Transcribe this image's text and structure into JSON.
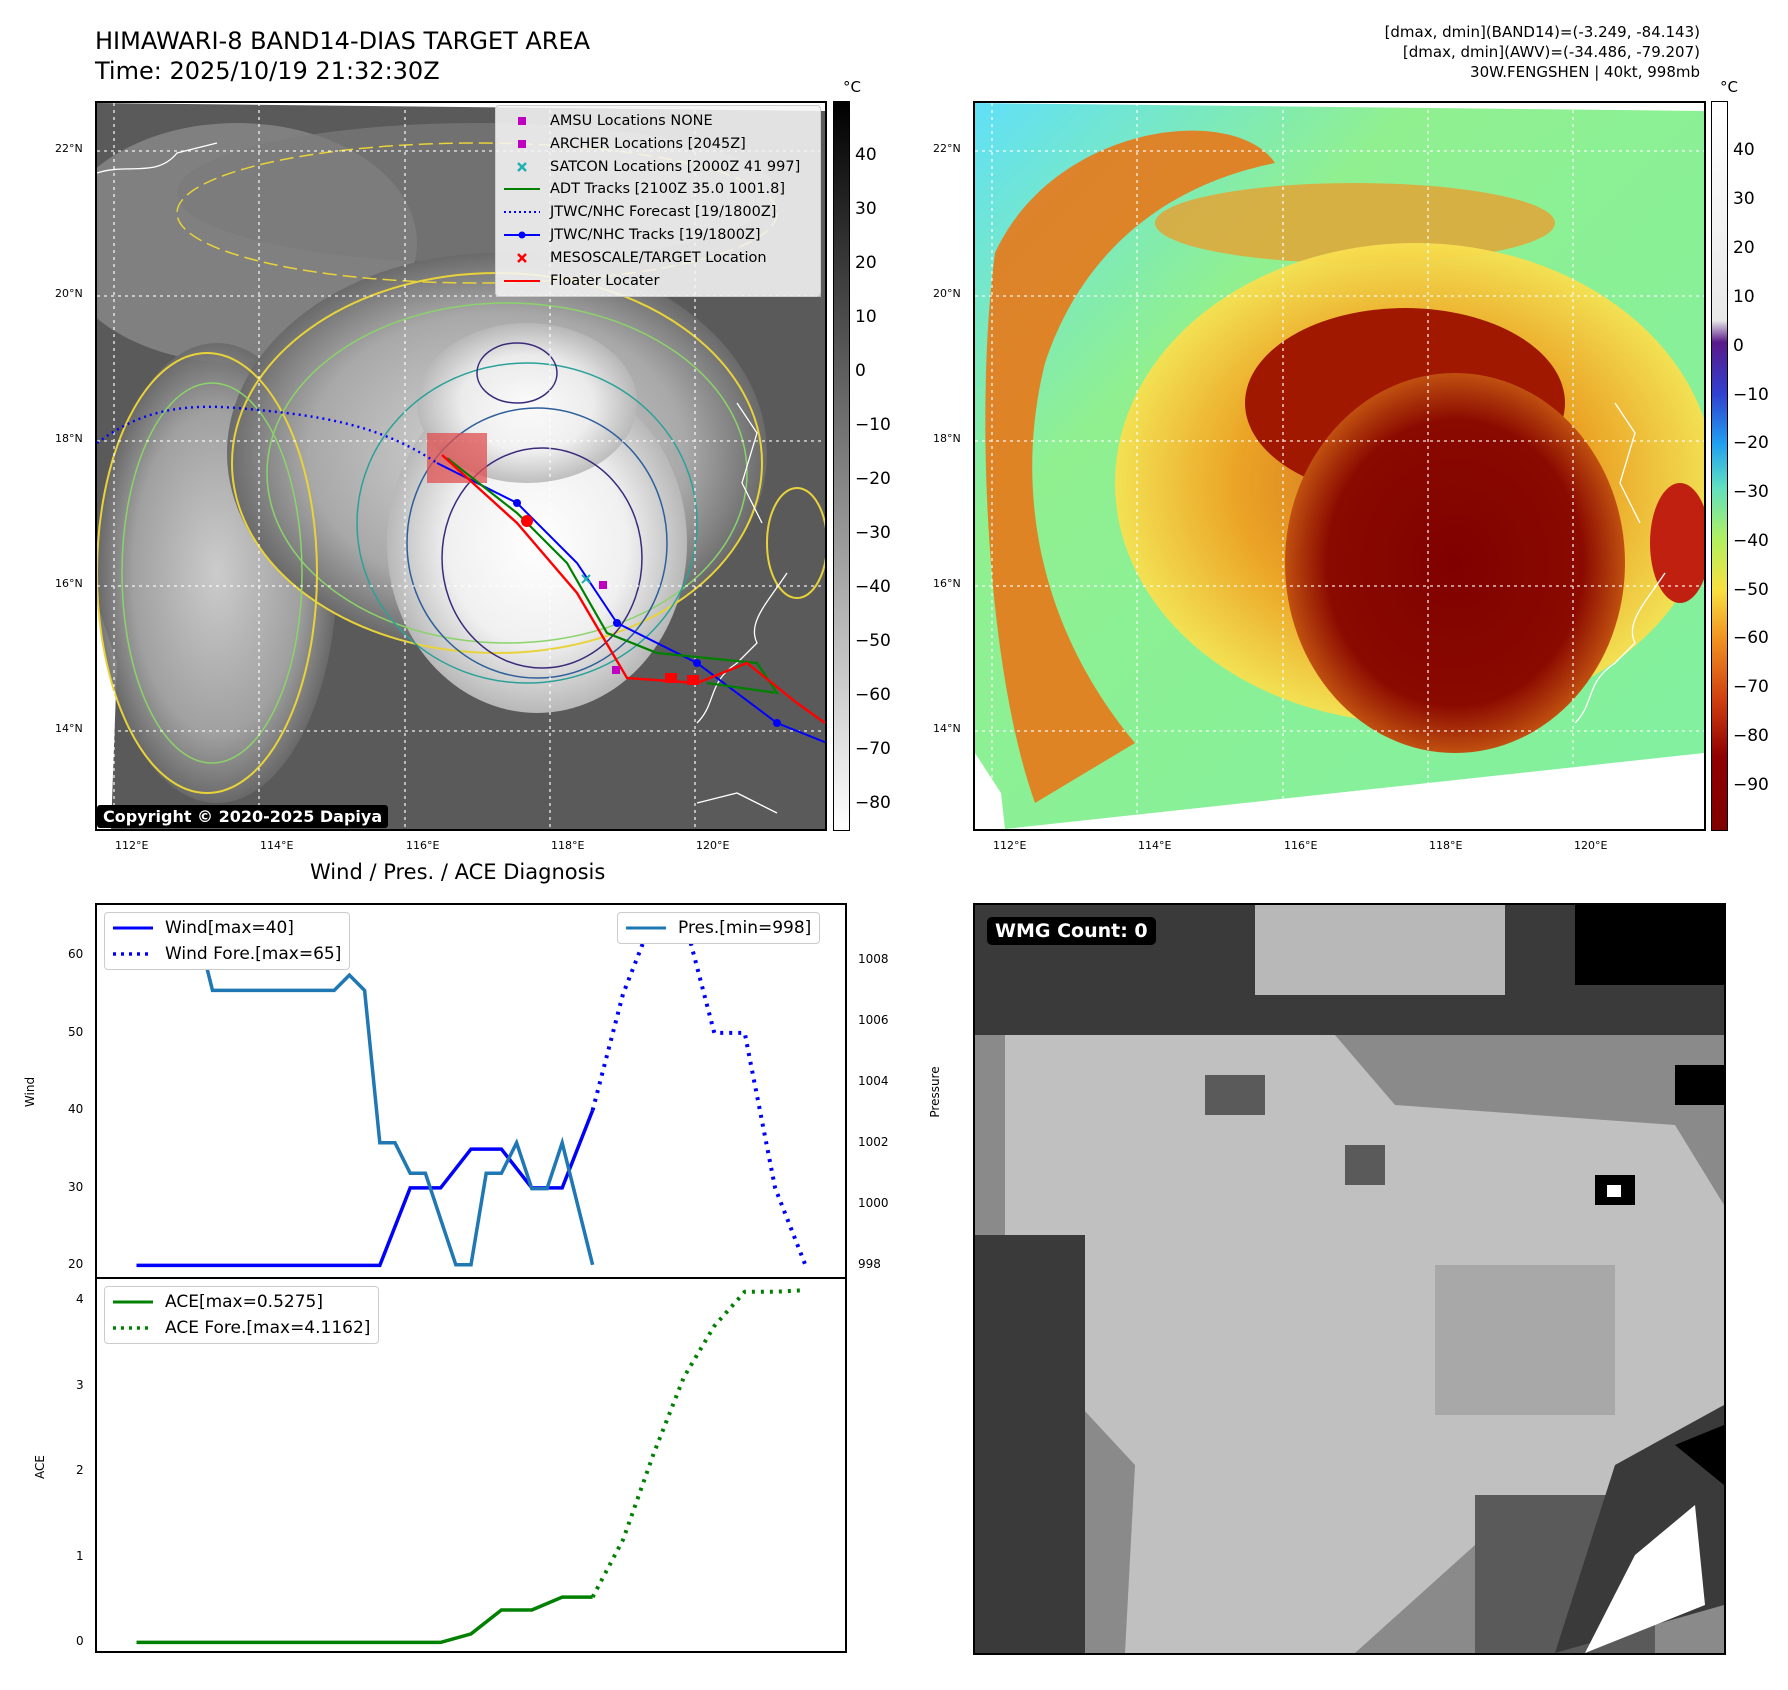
{
  "header": {
    "title_line1": "HIMAWARI-8 BAND14-DIAS TARGET AREA",
    "title_line2": "Time: 2025/10/19 21:32:30Z",
    "meta_line1": "[dmax, dmin](BAND14)=(-3.249, -84.143)",
    "meta_line2": "[dmax, dmin](AWV)=(-34.486, -79.207)",
    "meta_line3": "30W.FENGSHEN | 40kt, 998mb"
  },
  "map": {
    "lat_labels": [
      "22°N",
      "20°N",
      "18°N",
      "16°N",
      "14°N"
    ],
    "lon_labels": [
      "112°E",
      "114°E",
      "116°E",
      "118°E",
      "120°E"
    ],
    "copyright": "Copyright © 2020-2025 Dapiya",
    "legend": [
      {
        "label": "AMSU Locations NONE",
        "marker": "square",
        "color": "#c000c0"
      },
      {
        "label": "ARCHER Locations [2045Z]",
        "marker": "square",
        "color": "#c000c0"
      },
      {
        "label": "SATCON Locations [2000Z 41 997]",
        "marker": "x",
        "color": "#20b0b0"
      },
      {
        "label": "ADT Tracks [2100Z 35.0 1001.8]",
        "marker": "line",
        "color": "#008000"
      },
      {
        "label": "JTWC/NHC Forecast [19/1800Z]",
        "marker": "dotted",
        "color": "#0000ff"
      },
      {
        "label": "JTWC/NHC Tracks [19/1800Z]",
        "marker": "line-dot",
        "color": "#0000ff"
      },
      {
        "label": "MESOSCALE/TARGET Location",
        "marker": "x",
        "color": "#ff0000"
      },
      {
        "label": "Floater Locater",
        "marker": "line",
        "color": "#ff0000"
      }
    ],
    "colorbar_band14": {
      "unit": "°C",
      "ticks": [
        "40",
        "30",
        "20",
        "10",
        "0",
        "−10",
        "−20",
        "−30",
        "−40",
        "−50",
        "−60",
        "−70",
        "−80"
      ]
    },
    "colorbar_awv": {
      "unit": "°C",
      "ticks": [
        "40",
        "30",
        "20",
        "10",
        "0",
        "−10",
        "−20",
        "−30",
        "−40",
        "−50",
        "−60",
        "−70",
        "−80",
        "−90"
      ]
    },
    "colors": {
      "track_red": "#ff0000",
      "track_blue": "#0000ff",
      "track_green": "#008000"
    }
  },
  "diag": {
    "title": "Wind / Pres. / ACE Diagnosis",
    "wind_ylabel": "Wind",
    "pres_ylabel": "Pressure",
    "ace_ylabel": "ACE",
    "legend_wind": "Wind[max=40]",
    "legend_wind_fore": "Wind Fore.[max=65]",
    "legend_pres": "Pres.[min=998]",
    "legend_ace": "ACE[max=0.5275]",
    "legend_ace_fore": "ACE Fore.[max=4.1162]",
    "wmg_label": "WMG Count: 0"
  },
  "chart_data": [
    {
      "type": "line",
      "title": "Wind / Pres. / ACE Diagnosis",
      "ylabel": "Wind",
      "ylim": [
        18.5,
        66.5
      ],
      "yticks": [
        20,
        30,
        40,
        50,
        60
      ],
      "x_range": [
        0,
        22
      ],
      "series": [
        {
          "name": "Wind[max=40]",
          "style": "solid",
          "color": "#0000ff",
          "x": [
            0,
            8,
            9,
            10,
            11,
            12,
            13,
            14,
            15
          ],
          "y": [
            20,
            20,
            30,
            30,
            35,
            35,
            30,
            30,
            40
          ]
        },
        {
          "name": "Wind Fore.[max=65]",
          "style": "dotted",
          "color": "#0000ff",
          "x": [
            15,
            16,
            17,
            18,
            19,
            20,
            21,
            22
          ],
          "y": [
            40,
            55,
            65,
            65,
            50,
            50,
            30,
            20
          ]
        }
      ]
    },
    {
      "type": "line",
      "ylabel": "Pressure",
      "ylim": [
        997.6,
        1009.8
      ],
      "yticks": [
        998,
        1000,
        1002,
        1004,
        1006,
        1008
      ],
      "series": [
        {
          "name": "Pres.[min=998]",
          "style": "solid",
          "color": "#1f77b4",
          "x": [
            0,
            2,
            2.5,
            6.5,
            7,
            7.5,
            8,
            8.5,
            9,
            9.5,
            10,
            10.5,
            11,
            11.5,
            12,
            12.5,
            13,
            13.5,
            14,
            14.5,
            15
          ],
          "y": [
            1009,
            1009,
            1007,
            1007,
            1007.5,
            1007,
            1002,
            1002,
            1001,
            1001,
            999.5,
            998,
            998,
            1001,
            1001,
            1002,
            1000.5,
            1000.5,
            1002,
            1000,
            998
          ]
        }
      ]
    },
    {
      "type": "line",
      "ylabel": "ACE",
      "ylim": [
        -0.1,
        4.25
      ],
      "yticks": [
        0,
        1,
        2,
        3,
        4
      ],
      "series": [
        {
          "name": "ACE[max=0.5275]",
          "style": "solid",
          "color": "#008000",
          "x": [
            0,
            5,
            6,
            7,
            8,
            9,
            10,
            11,
            12,
            13,
            14,
            15
          ],
          "y": [
            0,
            0,
            0,
            0,
            0,
            0,
            0,
            0.1,
            0.38,
            0.38,
            0.53,
            0.53
          ]
        },
        {
          "name": "ACE Fore.[max=4.1162]",
          "style": "dotted",
          "color": "#008000",
          "x": [
            15,
            16,
            17,
            18,
            19,
            20,
            21,
            22
          ],
          "y": [
            0.53,
            1.2,
            2.2,
            3.1,
            3.7,
            4.1,
            4.1,
            4.12
          ]
        }
      ]
    }
  ]
}
